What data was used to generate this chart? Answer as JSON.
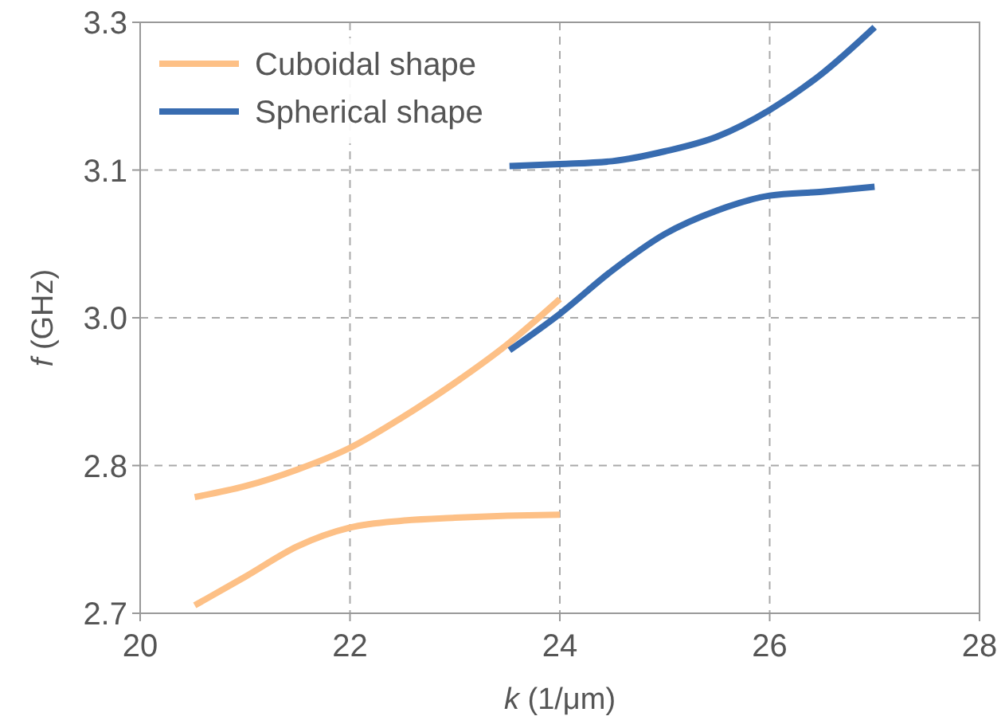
{
  "chart_data": {
    "type": "line",
    "xlabel": "k (1/μm)",
    "ylabel": "f (GHz)",
    "xlim": [
      20,
      28
    ],
    "xticks": [
      20,
      22,
      24,
      26,
      28
    ],
    "ylim": [
      2.7,
      3.3
    ],
    "yticks": [
      {
        "value": 2.7,
        "label": "2.7"
      },
      {
        "value": 2.85,
        "label": "2.8"
      },
      {
        "value": 3.0,
        "label": "3.0"
      },
      {
        "value": 3.15,
        "label": "3.1"
      },
      {
        "value": 3.3,
        "label": "3.3"
      }
    ],
    "grid": true,
    "legend": "top left",
    "line_style": "solid",
    "marker": "none",
    "series": [
      {
        "name": "Cuboidal shape",
        "color": "#fdc086",
        "x": [
          20.52,
          21,
          21.5,
          22,
          22.5,
          23,
          23.5,
          24
        ],
        "values": [
          2.818,
          2.829,
          2.846,
          2.868,
          2.899,
          2.934,
          2.973,
          3.019
        ]
      },
      {
        "color": "#fdc086",
        "x": [
          20.52,
          21,
          21.5,
          22,
          22.5,
          23,
          23.5,
          24
        ],
        "values": [
          2.708,
          2.737,
          2.768,
          2.787,
          2.794,
          2.797,
          2.799,
          2.8
        ]
      },
      {
        "name": "Spherical shape",
        "color": "#386cb0",
        "x": [
          23.52,
          24,
          24.5,
          25,
          25.5,
          26,
          26.5,
          27
        ],
        "values": [
          3.154,
          3.156,
          3.159,
          3.169,
          3.184,
          3.211,
          3.248,
          3.295
        ]
      },
      {
        "color": "#386cb0",
        "x": [
          23.52,
          24,
          24.5,
          25,
          25.5,
          26,
          26.5,
          27
        ],
        "values": [
          2.967,
          3.004,
          3.048,
          3.085,
          3.109,
          3.124,
          3.128,
          3.133
        ]
      }
    ]
  }
}
